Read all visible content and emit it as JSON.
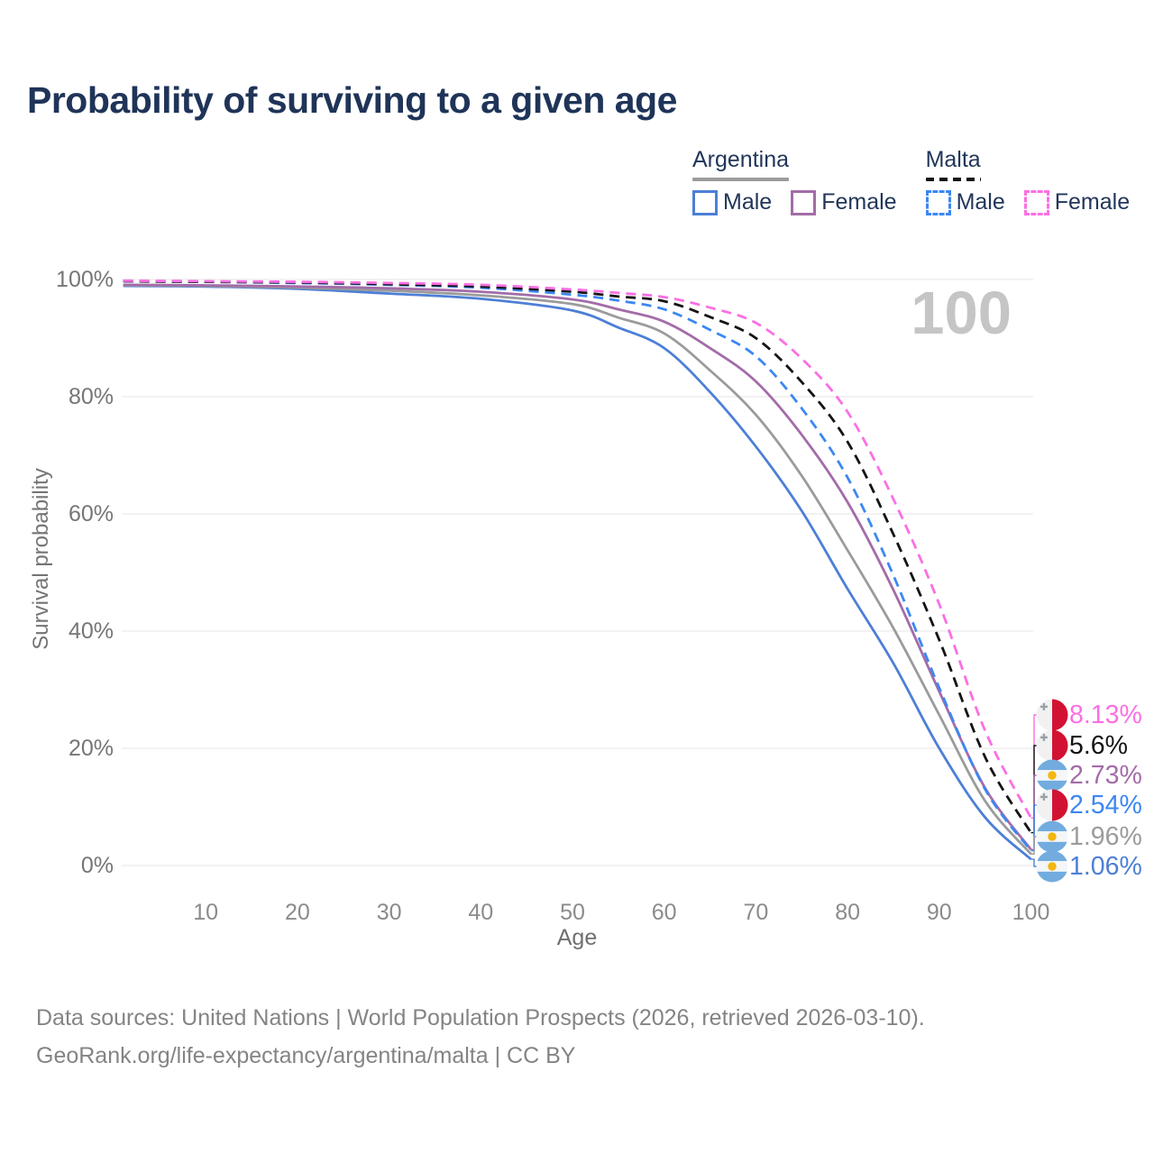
{
  "title": "Probability of surviving to a given age",
  "watermark": "100",
  "legend": {
    "groups": [
      {
        "name": "Argentina",
        "line_style": "solid",
        "underline_color": "#9b9b9b",
        "items": [
          {
            "label": "Male",
            "color": "#4d7fd6"
          },
          {
            "label": "Female",
            "color": "#a36ca8"
          }
        ]
      },
      {
        "name": "Malta",
        "line_style": "dashed",
        "underline_color": "#141414",
        "items": [
          {
            "label": "Male",
            "color": "#3c87f2"
          },
          {
            "label": "Female",
            "color": "#fb6fe3"
          }
        ]
      }
    ]
  },
  "chart_data": {
    "type": "line",
    "title": "Probability of surviving to a given age",
    "xlabel": "Age",
    "ylabel": "Survival probability",
    "xlim": [
      1,
      100
    ],
    "ylim": [
      0,
      100
    ],
    "grid": "horizontal",
    "ages": [
      1,
      10,
      20,
      30,
      40,
      50,
      55,
      60,
      65,
      70,
      75,
      80,
      85,
      90,
      95,
      100
    ],
    "xticks": [
      10,
      20,
      30,
      40,
      50,
      60,
      70,
      80,
      90,
      100
    ],
    "yticks": [
      {
        "value": 0,
        "label": "0%"
      },
      {
        "value": 20,
        "label": "20%"
      },
      {
        "value": 40,
        "label": "40%"
      },
      {
        "value": 60,
        "label": "60%"
      },
      {
        "value": 80,
        "label": "80%"
      },
      {
        "value": 100,
        "label": "100%"
      }
    ],
    "series": [
      {
        "id": "argentina-male",
        "name": "Argentina Male",
        "flag": "argentina",
        "color": "#4d7fd6",
        "dashed": false,
        "end_label": "1.06%",
        "values": [
          98.9,
          98.8,
          98.4,
          97.6,
          96.7,
          94.7,
          91.8,
          88.3,
          80.8,
          71.5,
          60.5,
          47.2,
          34.5,
          20.0,
          8.2,
          1.06
        ]
      },
      {
        "id": "argentina-total",
        "name": "Argentina Total",
        "flag": "argentina",
        "color": "#9b9b9b",
        "dashed": false,
        "end_label": "1.96%",
        "values": [
          99.0,
          98.9,
          98.6,
          98.1,
          97.3,
          95.8,
          93.5,
          90.8,
          84.5,
          76.9,
          66.5,
          53.8,
          40.5,
          25.7,
          11.0,
          1.96
        ]
      },
      {
        "id": "argentina-female",
        "name": "Argentina Female",
        "flag": "argentina",
        "color": "#a36ca8",
        "dashed": false,
        "end_label": "2.73%",
        "values": [
          99.1,
          99.0,
          98.8,
          98.5,
          97.9,
          96.6,
          94.9,
          92.8,
          88.3,
          82.6,
          73.5,
          62.0,
          47.0,
          29.7,
          13.2,
          2.73
        ]
      },
      {
        "id": "malta-male",
        "name": "Malta Male",
        "flag": "malta",
        "color": "#3c87f2",
        "dashed": true,
        "end_label": "2.54%",
        "values": [
          99.7,
          99.6,
          99.4,
          99.1,
          98.6,
          97.4,
          96.4,
          94.9,
          91.4,
          86.9,
          78.0,
          66.2,
          49.5,
          30.3,
          13.0,
          2.54
        ]
      },
      {
        "id": "malta-total",
        "name": "Malta Total",
        "flag": "malta",
        "color": "#141414",
        "dashed": true,
        "end_label": "5.6%",
        "values": [
          99.7,
          99.6,
          99.5,
          99.2,
          98.8,
          97.9,
          97.1,
          96.3,
          93.6,
          90.0,
          82.5,
          72.3,
          56.5,
          38.5,
          18.5,
          5.6
        ]
      },
      {
        "id": "malta-female",
        "name": "Malta Female",
        "flag": "malta",
        "color": "#fb6fe3",
        "dashed": true,
        "end_label": "8.13%",
        "values": [
          99.8,
          99.7,
          99.6,
          99.4,
          99.1,
          98.3,
          97.7,
          97.0,
          95.2,
          92.6,
          86.5,
          77.4,
          62.5,
          44.6,
          23.0,
          8.13
        ]
      }
    ],
    "flag_colors": {
      "malta_white": "#f1f1f1",
      "malta_red": "#d21232",
      "malta_cross": "#9aa0a6",
      "argentina_blue": "#72acdf",
      "argentina_white": "#f4f6f8",
      "argentina_sun": "#f3b50f"
    },
    "grid_color": "#e9e9e9",
    "watermark_color": "#c5c5c5"
  },
  "footer": {
    "line1": "Data sources: United Nations | World Population Prospects (2026, retrieved 2026-03-10).",
    "line2": "GeoRank.org/life-expectancy/argentina/malta | CC BY"
  }
}
